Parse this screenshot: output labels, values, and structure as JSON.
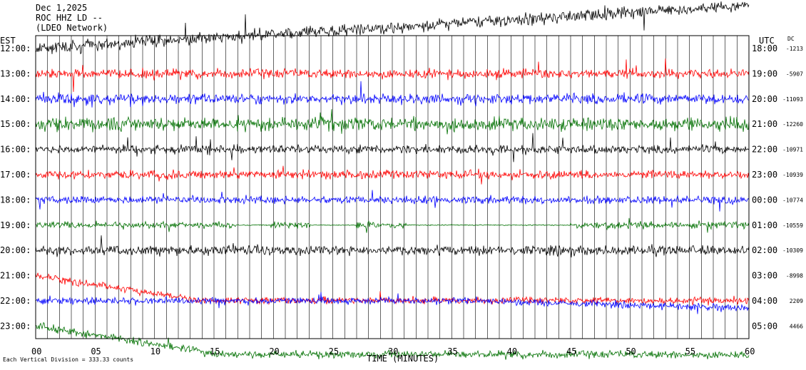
{
  "header": {
    "date": "Dec 1,2025",
    "station": "ROC HHZ LD --",
    "network": "(LDEO Network)"
  },
  "footer": {
    "division_note": "Each Vertical Division =  333.33 counts"
  },
  "chart_data": {
    "type": "line",
    "title": "",
    "xlabel": "TIME (MINUTES)",
    "ylabel_left": "EST",
    "ylabel_right": "UTC",
    "dc_header": "DC",
    "x_range": [
      0,
      60
    ],
    "x_ticks": [
      "00",
      "05",
      "10",
      "15",
      "20",
      "25",
      "30",
      "35",
      "40",
      "45",
      "50",
      "55",
      "60"
    ],
    "vertical_grid_every_minutes": 1,
    "grid": true,
    "trace_colors": [
      "#000000",
      "#ff0000",
      "#0000ff",
      "#007000"
    ],
    "rows": [
      {
        "est": "12:00",
        "utc": "18:00",
        "dc": "-1213"
      },
      {
        "est": "13:00",
        "utc": "19:00",
        "dc": "-5907"
      },
      {
        "est": "14:00",
        "utc": "20:00",
        "dc": "-11093"
      },
      {
        "est": "15:00",
        "utc": "21:00",
        "dc": "-12260"
      },
      {
        "est": "16:00",
        "utc": "22:00",
        "dc": "-10971"
      },
      {
        "est": "17:00",
        "utc": "23:00",
        "dc": "-10939"
      },
      {
        "est": "18:00",
        "utc": "00:00",
        "dc": "-10774"
      },
      {
        "est": "19:00",
        "utc": "01:00",
        "dc": "-10559"
      },
      {
        "est": "20:00",
        "utc": "02:00",
        "dc": "-10309"
      },
      {
        "est": "21:00",
        "utc": "03:00",
        "dc": "-8998"
      },
      {
        "est": "22:00",
        "utc": "04:00",
        "dc": "2209"
      },
      {
        "est": "23:00",
        "utc": "05:00",
        "dc": "4466"
      }
    ]
  }
}
